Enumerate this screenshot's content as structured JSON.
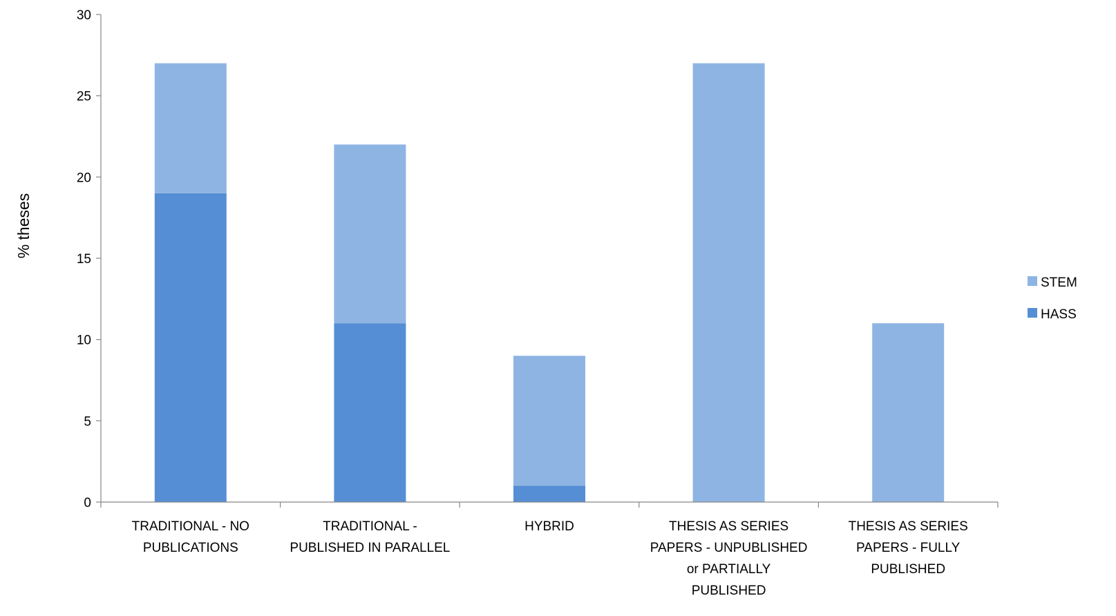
{
  "chart_data": {
    "type": "bar",
    "stacked": true,
    "categories": [
      [
        "TRADITIONAL - NO",
        "PUBLICATIONS"
      ],
      [
        "TRADITIONAL -",
        "PUBLISHED IN PARALLEL"
      ],
      [
        "HYBRID"
      ],
      [
        "THESIS AS SERIES",
        "PAPERS - UNPUBLISHED",
        "or PARTIALLY",
        "PUBLISHED"
      ],
      [
        "THESIS AS SERIES",
        "PAPERS - FULLY",
        "PUBLISHED"
      ]
    ],
    "series": [
      {
        "name": "HASS",
        "color": "#558ed5",
        "values": [
          19,
          11,
          1,
          0,
          0
        ]
      },
      {
        "name": "STEM",
        "color": "#8eb4e3",
        "values": [
          8,
          11,
          8,
          27,
          11
        ]
      }
    ],
    "legend_order": [
      "STEM",
      "HASS"
    ],
    "legend_position": "right",
    "title": "",
    "xlabel": "",
    "ylabel": "% theses",
    "ylim": [
      0,
      30
    ],
    "yticks": [
      0,
      5,
      10,
      15,
      20,
      25,
      30
    ],
    "grid": false
  }
}
